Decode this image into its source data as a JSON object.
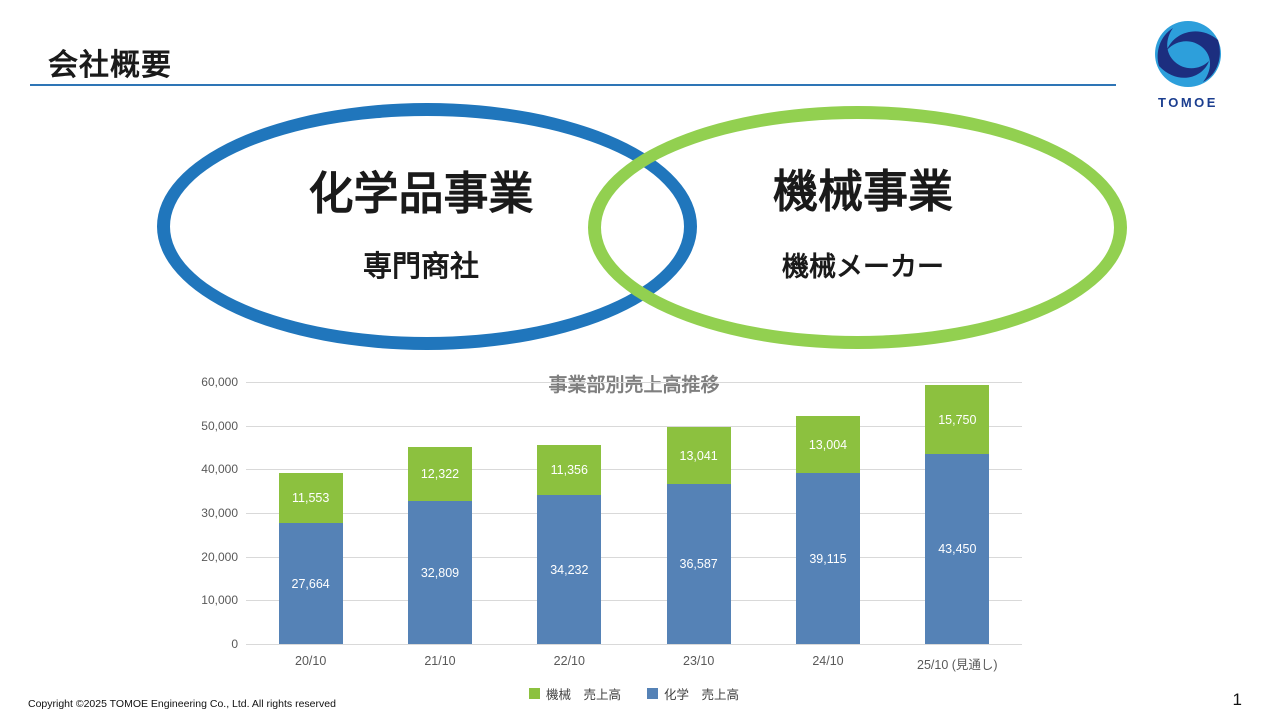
{
  "slide": {
    "title": "会社概要",
    "page_number": "1",
    "footer": "Copyright ©2025 TOMOE Engineering Co., Ltd. All rights reserved"
  },
  "logo": {
    "text": "TOMOE",
    "color_dark": "#1C2E7F",
    "color_light": "#2D9FDB"
  },
  "venn": {
    "left": {
      "title": "化学品事業",
      "subtitle": "専門商社",
      "ring_color": "#2076BC"
    },
    "right": {
      "title": "機械事業",
      "subtitle": "機械メーカー",
      "ring_color": "#92D050"
    }
  },
  "chart_data": {
    "type": "bar",
    "stacked": true,
    "title": "事業部別売上高推移",
    "categories": [
      "20/10",
      "21/10",
      "22/10",
      "23/10",
      "24/10",
      "25/10 (見通し)"
    ],
    "series": [
      {
        "name": "化学　売上高",
        "color": "#5582B6",
        "values": [
          27664,
          32809,
          34232,
          36587,
          39115,
          43450
        ]
      },
      {
        "name": "機械　売上高",
        "color": "#8CC13F",
        "values": [
          11553,
          12322,
          11356,
          13041,
          13004,
          15750
        ]
      }
    ],
    "ylim": [
      0,
      60000
    ],
    "ytick_step": 10000,
    "grid": true,
    "legend_position": "bottom",
    "legend_order": [
      "機械　売上高",
      "化学　売上高"
    ]
  }
}
